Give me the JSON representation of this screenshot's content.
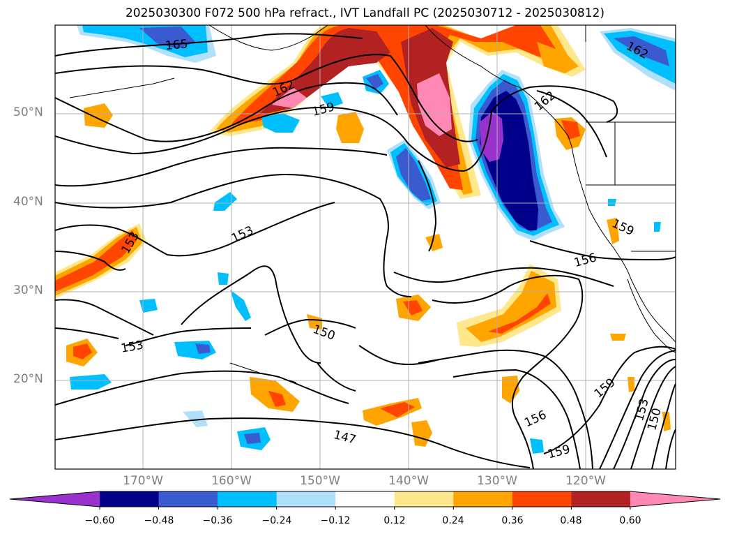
{
  "title": "2025030300 F072 500 hPa refract., IVT Landfall PC (2025030712 - 2025030812)",
  "latitude_labels": [
    "50°N",
    "40°N",
    "30°N",
    "20°N"
  ],
  "longitude_labels": [
    "170°W",
    "160°W",
    "150°W",
    "140°W",
    "130°W",
    "120°W"
  ],
  "colorbar": {
    "tick_labels": [
      "−0.60",
      "−0.48",
      "−0.36",
      "−0.24",
      "−0.12",
      "0.12",
      "0.24",
      "0.36",
      "0.48",
      "0.60"
    ],
    "colors": [
      "#9932cc",
      "#00008b",
      "#3a5bd0",
      "#00bfff",
      "#b0e0fa",
      "#ffffff",
      "#ffe88c",
      "#ffa500",
      "#ff4500",
      "#b22222",
      "#ff88b4"
    ]
  },
  "contour_labels": [
    "165",
    "162",
    "159",
    "162",
    "162",
    "153",
    "153",
    "150",
    "153",
    "156",
    "159",
    "156",
    "159",
    "159",
    "153",
    "150",
    "147"
  ],
  "fill_colors": {
    "purple": "#9932cc",
    "navy": "#00008b",
    "royal": "#3a5bd0",
    "sky": "#00bfff",
    "pale_blue": "#b0e0fa",
    "pale_yellow": "#ffe88c",
    "orange": "#ffa500",
    "red_orange": "#ff4500",
    "firebrick": "#b22222",
    "pink": "#ff88b4"
  }
}
